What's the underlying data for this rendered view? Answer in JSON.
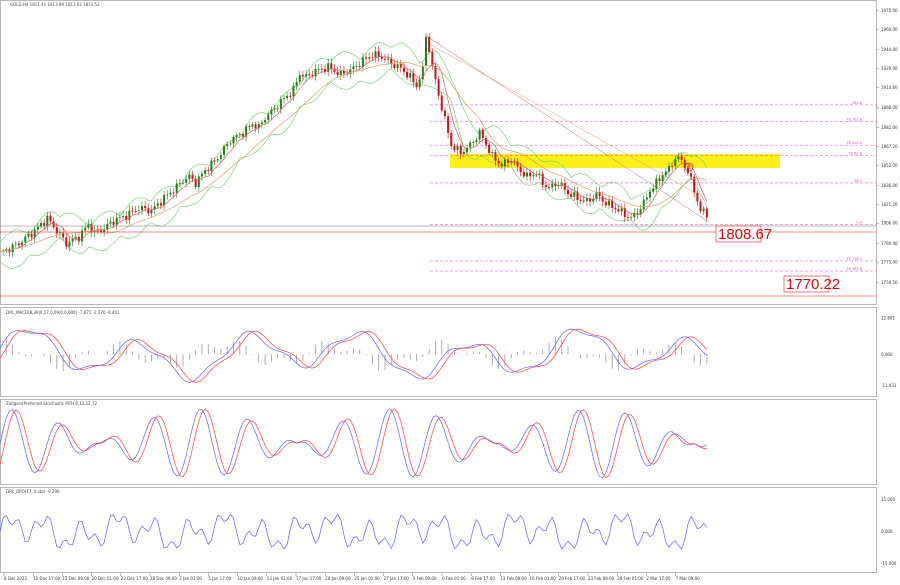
{
  "window": {
    "main_header": "GOLD,H4  1811.41  1813.89  1811.02  1813.52",
    "ind1_header": "DRL_MACD(8,39|0,17,0,09|0,0,000) -7.871 -2.276 -6.401",
    "ind2_header": "ZeitgeistPreferred Stochastic MTH 8,12,12,72",
    "ind3_header": "DRL_DPO(17, 0,sto) -9.296",
    "marker": "A"
  },
  "labels": {
    "level_a": "1808.67",
    "level_b": "1770.22"
  },
  "fib_levels": [
    {
      "name": "fib-label-161",
      "text": "161.8",
      "price": 1900
    },
    {
      "name": "fib-label-1618",
      "text": "FE 161.8",
      "price": 1887
    },
    {
      "name": "fib-label-100",
      "text": "FE 100.0",
      "price": 1868
    },
    {
      "name": "fib-label-618",
      "text": "FE 61.8",
      "price": 1860
    },
    {
      "name": "fib-label-382",
      "text": "38.2",
      "price": 1838
    },
    {
      "name": "fib-label-0",
      "text": "0.0",
      "price": 1805
    },
    {
      "name": "fib-label-1382",
      "text": "FE 138.2",
      "price": 1776
    },
    {
      "name": "fib-label-1618b",
      "text": "FE 161.8",
      "price": 1768
    }
  ],
  "colors": {
    "bull": "#208010",
    "bear": "#d01010",
    "ma_red": "#d06060",
    "ma_orange": "#e0a060",
    "band_green": "#60d060",
    "fib": "#e040c0",
    "highlight": "#ffee00",
    "indicator_blue": "#6060ff",
    "indicator_red": "#ff4040",
    "level": "#e02020"
  },
  "chart_data": [
    {
      "type": "candlestick",
      "title": "",
      "ylim": [
        1745,
        1977
      ],
      "price_ticks": [
        {
          "v": 1975,
          "t": "1975.00"
        },
        {
          "v": 1960,
          "t": "1960.00"
        },
        {
          "v": 1944,
          "t": "1944.00"
        },
        {
          "v": 1929,
          "t": "1929.00"
        },
        {
          "v": 1914,
          "t": "1914.60"
        },
        {
          "v": 1898,
          "t": "1898.00"
        },
        {
          "v": 1882,
          "t": "1882.00"
        },
        {
          "v": 1867,
          "t": "1867.20"
        },
        {
          "v": 1852,
          "t": "1852.00"
        },
        {
          "v": 1836,
          "t": "1836.00"
        },
        {
          "v": 1821,
          "t": "1821.20"
        },
        {
          "v": 1806,
          "t": "1806.00"
        },
        {
          "v": 1790,
          "t": "1790.40"
        },
        {
          "v": 1775,
          "t": "1775.00"
        },
        {
          "v": 1759,
          "t": "1759.50"
        }
      ],
      "time_labels": [
        "8 Dec 2022",
        "12 Dec 17:00",
        "15 Dec 09:00",
        "20 Dec 01:00",
        "22 Dec 17:00",
        "28 Dec 09:00",
        "2 Jan 01:00",
        "5 Jan 17:00",
        "10 Jan 09:00",
        "13 Jan 01:00",
        "17 Jan 17:00",
        "20 Jan 09:00",
        "25 Jan 01:00",
        "27 Jan 17:00",
        "1 Feb 09:00",
        "6 Feb 01:00",
        "8 Feb 17:00",
        "13 Feb 09:00",
        "16 Feb 01:00",
        "20 Feb 17:00",
        "23 Feb 09:00",
        "28 Feb 01:00",
        "2 Mar 17:00",
        "7 Mar 09:00"
      ],
      "price_path": [
        [
          0,
          1782
        ],
        [
          6,
          1790
        ],
        [
          11,
          1800
        ],
        [
          15,
          1810
        ],
        [
          18,
          1800
        ],
        [
          21,
          1790
        ],
        [
          25,
          1795
        ],
        [
          28,
          1805
        ],
        [
          30,
          1798
        ],
        [
          33,
          1802
        ],
        [
          36,
          1808
        ],
        [
          40,
          1812
        ],
        [
          44,
          1818
        ],
        [
          48,
          1816
        ],
        [
          52,
          1826
        ],
        [
          56,
          1835
        ],
        [
          58,
          1840
        ],
        [
          60,
          1843
        ],
        [
          62,
          1838
        ],
        [
          65,
          1848
        ],
        [
          69,
          1858
        ],
        [
          73,
          1872
        ],
        [
          77,
          1878
        ],
        [
          80,
          1885
        ],
        [
          82,
          1882
        ],
        [
          84,
          1890
        ],
        [
          87,
          1897
        ],
        [
          90,
          1905
        ],
        [
          93,
          1912
        ],
        [
          95,
          1925
        ],
        [
          97,
          1922
        ],
        [
          100,
          1927
        ],
        [
          104,
          1930
        ],
        [
          108,
          1924
        ],
        [
          112,
          1929
        ],
        [
          115,
          1935
        ],
        [
          118,
          1940
        ],
        [
          121,
          1938
        ],
        [
          124,
          1933
        ],
        [
          127,
          1929
        ],
        [
          130,
          1922
        ],
        [
          132,
          1915
        ],
        [
          134,
          1928
        ],
        [
          135,
          1955
        ],
        [
          136,
          1944
        ],
        [
          137,
          1930
        ],
        [
          139,
          1908
        ],
        [
          141,
          1888
        ],
        [
          143,
          1868
        ],
        [
          146,
          1862
        ],
        [
          149,
          1868
        ],
        [
          152,
          1878
        ],
        [
          154,
          1869
        ],
        [
          156,
          1859
        ],
        [
          159,
          1852
        ],
        [
          162,
          1857
        ],
        [
          164,
          1850
        ],
        [
          167,
          1843
        ],
        [
          170,
          1846
        ],
        [
          172,
          1838
        ],
        [
          174,
          1834
        ],
        [
          177,
          1838
        ],
        [
          180,
          1830
        ],
        [
          183,
          1826
        ],
        [
          186,
          1823
        ],
        [
          189,
          1829
        ],
        [
          192,
          1822
        ],
        [
          195,
          1818
        ],
        [
          198,
          1813
        ],
        [
          200,
          1810
        ],
        [
          202,
          1815
        ],
        [
          204,
          1822
        ],
        [
          206,
          1832
        ],
        [
          208,
          1838
        ],
        [
          210,
          1845
        ],
        [
          212,
          1849
        ],
        [
          214,
          1858
        ],
        [
          216,
          1856
        ],
        [
          218,
          1847
        ],
        [
          220,
          1832
        ],
        [
          222,
          1816
        ],
        [
          224,
          1813
        ]
      ]
    },
    {
      "type": "line",
      "name": "DRL_MACD",
      "ylim": [
        -14,
        15
      ],
      "ticks": [
        {
          "v": 12.8,
          "t": "12.801"
        },
        {
          "v": 0,
          "t": "0.000"
        },
        {
          "v": -11,
          "t": "-11.931"
        }
      ]
    },
    {
      "type": "line",
      "name": "Preferred Stochastic",
      "ylim": [
        0,
        100
      ],
      "ticks": []
    },
    {
      "type": "line",
      "name": "DRL_DPO",
      "ylim": [
        -18,
        18
      ],
      "ticks": [
        {
          "v": 15,
          "t": "15.000"
        },
        {
          "v": 0,
          "t": "0.000"
        },
        {
          "v": -15,
          "t": "-15.000"
        }
      ]
    }
  ]
}
